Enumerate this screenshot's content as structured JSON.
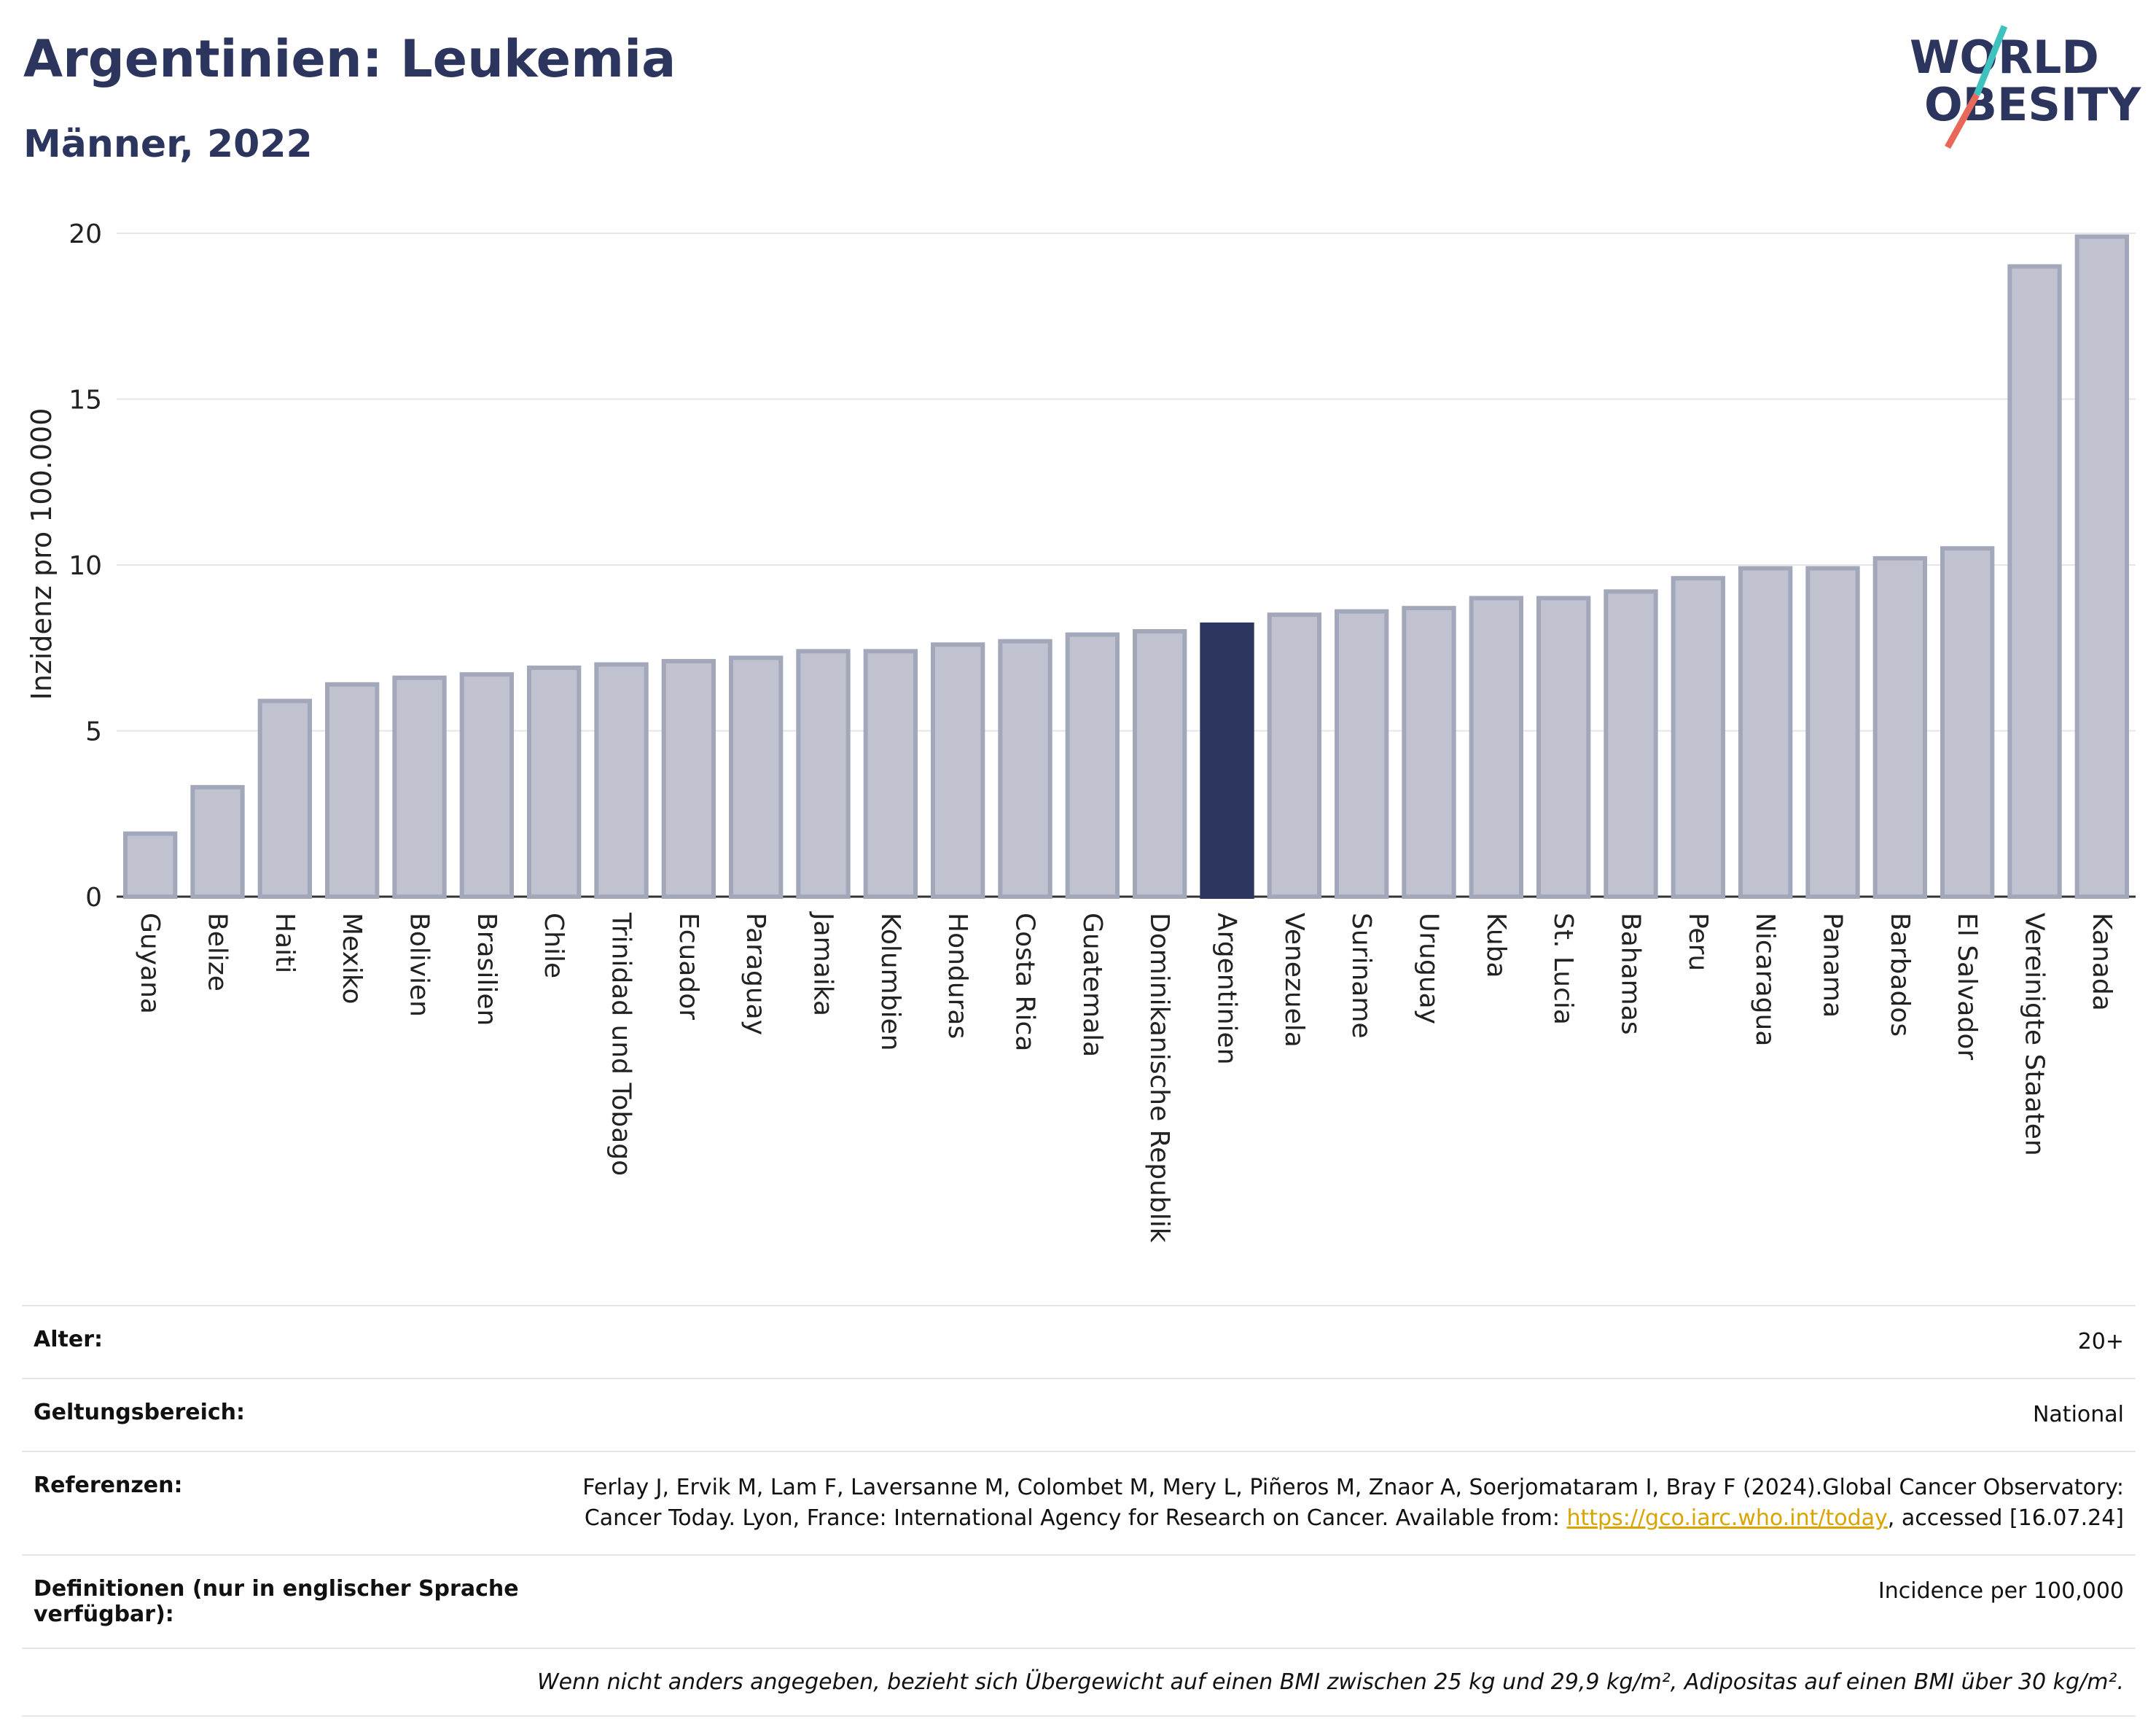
{
  "header": {
    "title": "Argentinien: Leukemia",
    "subtitle": "Männer, 2022"
  },
  "logo": {
    "line1": "WORLD",
    "line2": "OBESITY"
  },
  "chart_data": {
    "type": "bar",
    "ylabel": "Inzidenz pro 100.000",
    "ylim": [
      0,
      20
    ],
    "yticks": [
      0,
      5,
      10,
      15,
      20
    ],
    "grid": true,
    "highlight": "Argentinien",
    "colors": {
      "bar": "#c0c3cf",
      "bar_border": "#a3a7ba",
      "highlight": "#2b355e"
    },
    "categories": [
      "Guyana",
      "Belize",
      "Haiti",
      "Mexiko",
      "Bolivien",
      "Brasilien",
      "Chile",
      "Trinidad und Tobago",
      "Ecuador",
      "Paraguay",
      "Jamaika",
      "Kolumbien",
      "Honduras",
      "Costa Rica",
      "Guatemala",
      "Dominikanische Republik",
      "Argentinien",
      "Venezuela",
      "Suriname",
      "Uruguay",
      "Kuba",
      "St. Lucia",
      "Bahamas",
      "Peru",
      "Nicaragua",
      "Panama",
      "Barbados",
      "El Salvador",
      "Vereinigte Staaten",
      "Kanada"
    ],
    "values": [
      1.9,
      3.3,
      5.9,
      6.4,
      6.6,
      6.7,
      6.9,
      7.0,
      7.1,
      7.2,
      7.4,
      7.4,
      7.6,
      7.7,
      7.9,
      8.0,
      8.2,
      8.5,
      8.6,
      8.7,
      9.0,
      9.0,
      9.2,
      9.6,
      9.9,
      9.9,
      10.2,
      10.5,
      19.0,
      19.9
    ]
  },
  "meta": {
    "age_label": "Alter:",
    "age_value": "20+",
    "scope_label": "Geltungsbereich:",
    "scope_value": "National",
    "ref_label": "Referenzen:",
    "ref_text_1": "Ferlay J, Ervik M, Lam F, Laversanne M, Colombet M, Mery L, Piñeros M, Znaor A, Soerjomataram I, Bray F (2024).Global Cancer Observatory: Cancer Today. Lyon, France: International Agency for Research on Cancer. Available from: ",
    "ref_link": "https://gco.iarc.who.int/today",
    "ref_text_2": ", accessed [16.07.24]",
    "def_label": "Definitionen (nur in englischer Sprache verfügbar):",
    "def_value": "Incidence per 100,000",
    "note": "Wenn nicht anders angegeben, bezieht sich Übergewicht auf einen BMI zwischen 25 kg und 29,9 kg/m², Adipositas auf einen BMI über 30 kg/m²."
  }
}
